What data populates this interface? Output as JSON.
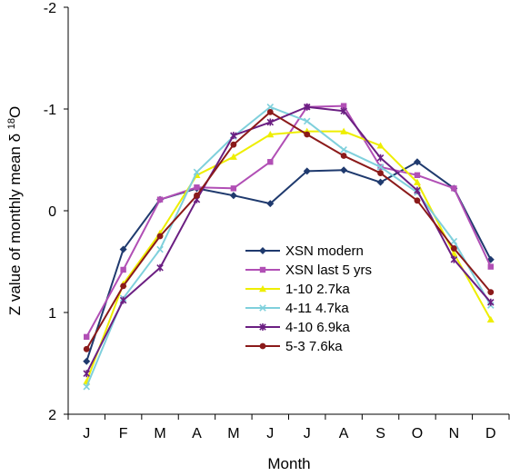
{
  "chart_data": {
    "type": "line",
    "title": "",
    "xlabel": "Month",
    "ylabel_main": "Z value of monthly mean δ ",
    "ylabel_sup": "18",
    "ylabel_end": "O",
    "ylim": [
      -2,
      2
    ],
    "y_inverted": true,
    "y_ticks": [
      "-2",
      "-1",
      "0",
      "1",
      "2"
    ],
    "y_tick_values": [
      -2,
      -1,
      0,
      1,
      2
    ],
    "categories": [
      "J",
      "F",
      "M",
      "A",
      "M",
      "J",
      "J",
      "A",
      "S",
      "O",
      "N",
      "D"
    ],
    "grid": false,
    "legend_position": "center-right",
    "series": [
      {
        "name": "XSN modern",
        "color": "#1f3a6e",
        "marker": "diamond",
        "values": [
          1.48,
          0.38,
          -0.11,
          -0.22,
          -0.15,
          -0.07,
          -0.39,
          -0.4,
          -0.28,
          -0.48,
          -0.22,
          0.48
        ]
      },
      {
        "name": "XSN last 5 yrs",
        "color": "#b14fb5",
        "marker": "square",
        "values": [
          1.24,
          0.58,
          -0.11,
          -0.23,
          -0.22,
          -0.48,
          -1.02,
          -1.03,
          -0.43,
          -0.35,
          -0.22,
          0.55
        ]
      },
      {
        "name": "1-10 2.7ka",
        "color": "#eeee00",
        "marker": "triangle",
        "values": [
          1.68,
          0.72,
          0.22,
          -0.35,
          -0.53,
          -0.75,
          -0.78,
          -0.78,
          -0.64,
          -0.28,
          0.42,
          1.07
        ]
      },
      {
        "name": "4-11 4.7ka",
        "color": "#7fd0dc",
        "marker": "x",
        "values": [
          1.73,
          0.86,
          0.38,
          -0.38,
          -0.73,
          -1.02,
          -0.88,
          -0.6,
          -0.43,
          -0.18,
          0.3,
          0.93
        ]
      },
      {
        "name": "4-10 6.9ka",
        "color": "#6b1f82",
        "marker": "star",
        "values": [
          1.6,
          0.88,
          0.56,
          -0.11,
          -0.74,
          -0.87,
          -1.02,
          -0.98,
          -0.52,
          -0.2,
          0.48,
          0.9
        ]
      },
      {
        "name": "5-3 7.6ka",
        "color": "#8b1a1a",
        "marker": "circle",
        "values": [
          1.36,
          0.74,
          0.25,
          -0.15,
          -0.65,
          -0.97,
          -0.75,
          -0.54,
          -0.37,
          -0.1,
          0.37,
          0.8
        ]
      }
    ]
  }
}
